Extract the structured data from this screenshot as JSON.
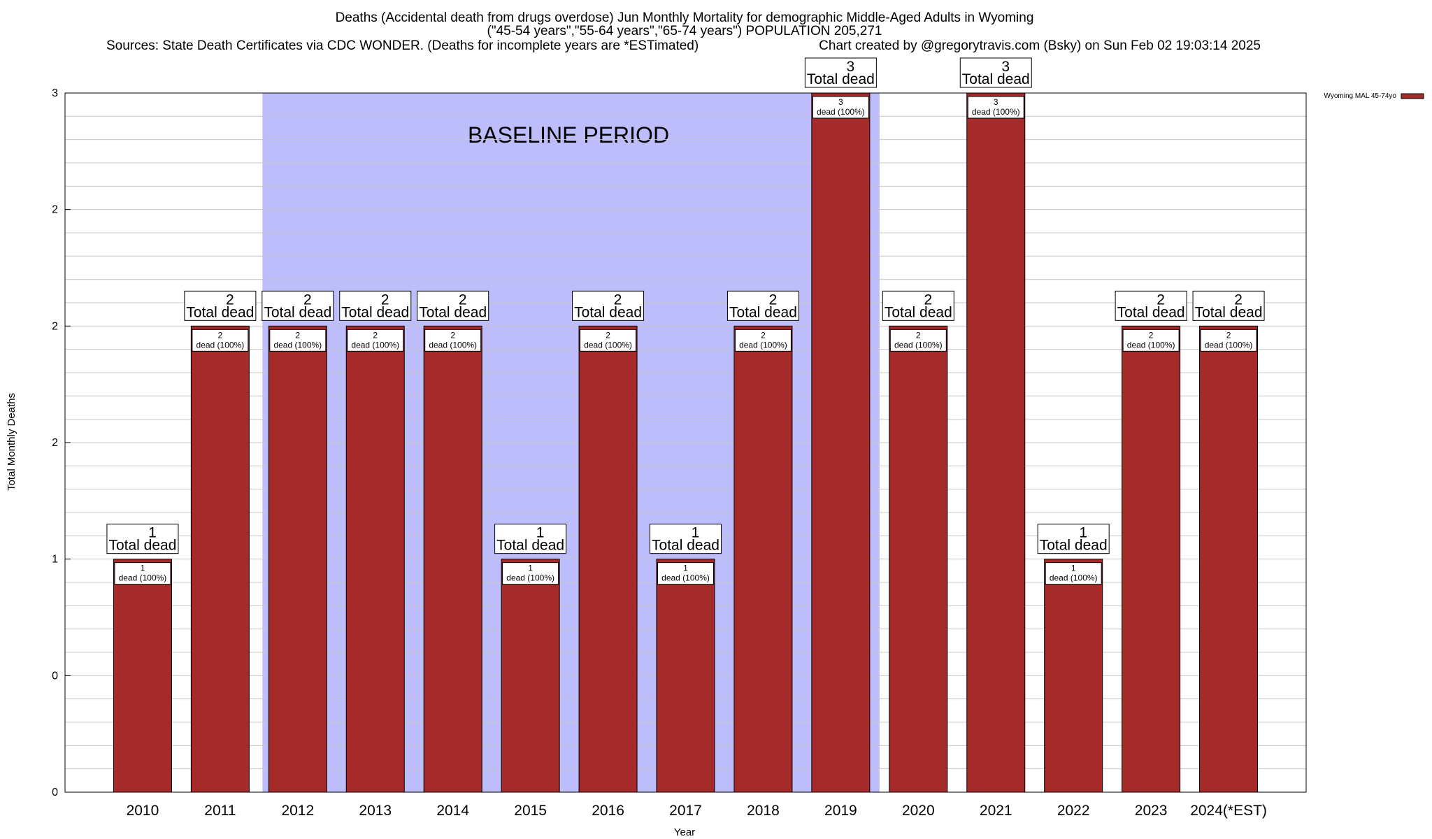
{
  "chart_data": {
    "type": "bar",
    "title_lines": [
      "Deaths (Accidental death from drugs overdose) Jun Monthly Mortality for demographic Middle-Aged Adults in Wyoming",
      "(\"45-54 years\",\"55-64 years\",\"65-74 years\") POPULATION 205,271"
    ],
    "sources_text": "Sources: State Death Certificates via CDC WONDER. (Deaths for incomplete years are *ESTimated)",
    "credit_text": "Chart created by @gregorytravis.com (Bsky) on Sun Feb 02 19:03:14 2025",
    "xlabel": "Year",
    "ylabel": "Total Monthly Deaths",
    "categories": [
      "2010",
      "2011",
      "2012",
      "2013",
      "2014",
      "2015",
      "2016",
      "2017",
      "2018",
      "2019",
      "2020",
      "2021",
      "2022",
      "2023",
      "2024(*EST)"
    ],
    "series": [
      {
        "name": "Wyoming MAL 45-74yo",
        "color": "#a52a2a",
        "values": [
          1,
          2,
          2,
          2,
          2,
          1,
          2,
          1,
          2,
          3,
          2,
          3,
          1,
          2,
          2
        ]
      }
    ],
    "ylim": [
      0,
      3
    ],
    "ytick_values": [
      0,
      0.5,
      1,
      1.5,
      2,
      2.5,
      3
    ],
    "ytick_labels": [
      "0",
      "0",
      "1",
      "2",
      "2",
      "2",
      "3"
    ],
    "grid": true,
    "legend_position": "top-right",
    "bar_total_labels": [
      {
        "value": "1",
        "text": "Total dead"
      },
      {
        "value": "2",
        "text": "Total dead"
      },
      {
        "value": "2",
        "text": "Total dead"
      },
      {
        "value": "2",
        "text": "Total dead"
      },
      {
        "value": "2",
        "text": "Total dead"
      },
      {
        "value": "1",
        "text": "Total dead"
      },
      {
        "value": "2",
        "text": "Total dead"
      },
      {
        "value": "1",
        "text": "Total dead"
      },
      {
        "value": "2",
        "text": "Total dead"
      },
      {
        "value": "3",
        "text": "Total dead"
      },
      {
        "value": "2",
        "text": "Total dead"
      },
      {
        "value": "3",
        "text": "Total dead"
      },
      {
        "value": "1",
        "text": "Total dead"
      },
      {
        "value": "2",
        "text": "Total dead"
      },
      {
        "value": "2",
        "text": "Total dead"
      }
    ],
    "bar_inner_labels": [
      {
        "value": "1",
        "text": "dead (100%)"
      },
      {
        "value": "2",
        "text": "dead (100%)"
      },
      {
        "value": "2",
        "text": "dead (100%)"
      },
      {
        "value": "2",
        "text": "dead (100%)"
      },
      {
        "value": "2",
        "text": "dead (100%)"
      },
      {
        "value": "1",
        "text": "dead (100%)"
      },
      {
        "value": "2",
        "text": "dead (100%)"
      },
      {
        "value": "1",
        "text": "dead (100%)"
      },
      {
        "value": "2",
        "text": "dead (100%)"
      },
      {
        "value": "3",
        "text": "dead (100%)"
      },
      {
        "value": "2",
        "text": "dead (100%)"
      },
      {
        "value": "3",
        "text": "dead (100%)"
      },
      {
        "value": "1",
        "text": "dead (100%)"
      },
      {
        "value": "2",
        "text": "dead (100%)"
      },
      {
        "value": "2",
        "text": "dead (100%)"
      }
    ],
    "baseline_period": {
      "label": "BASELINE PERIOD",
      "start_year": "2012",
      "end_year": "2019",
      "color": "#bdbdfb"
    }
  }
}
